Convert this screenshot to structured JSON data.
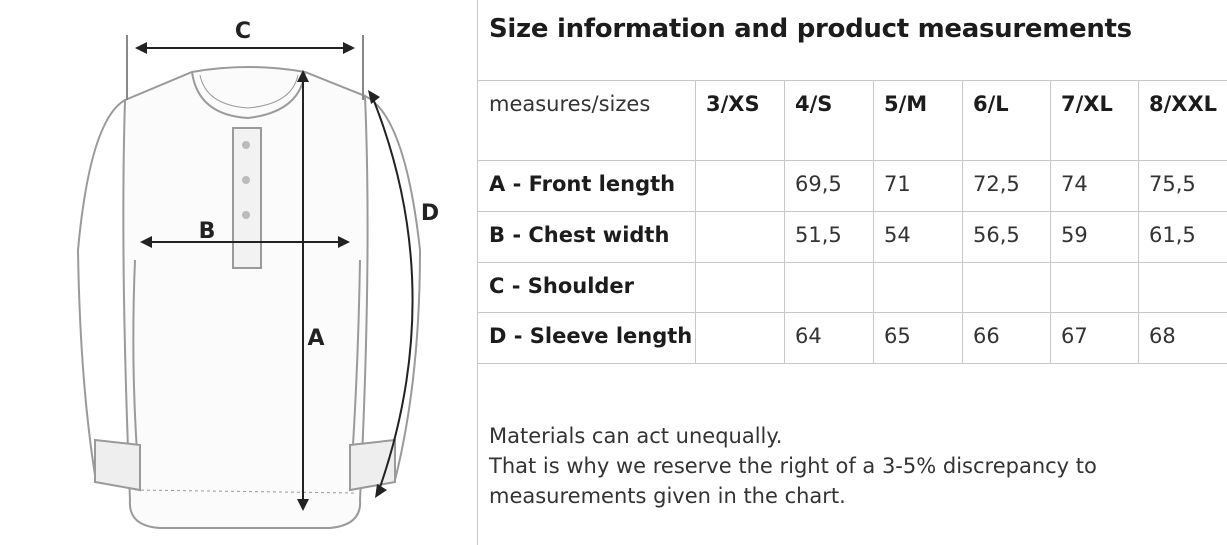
{
  "diagram": {
    "labels": {
      "a": "A",
      "b": "B",
      "c": "C",
      "d": "D"
    }
  },
  "title": "Size information and product measurements",
  "table": {
    "header": [
      "measures/sizes",
      "3/XS",
      "4/S",
      "5/M",
      "6/L",
      "7/XL",
      "8/XXL"
    ],
    "rows": [
      [
        "A - Front length",
        null,
        "69,5",
        "71",
        "72,5",
        "74",
        "75,5"
      ],
      [
        "B - Chest width",
        null,
        "51,5",
        "54",
        "56,5",
        "59",
        "61,5"
      ],
      [
        "C - Shoulder",
        null,
        null,
        null,
        null,
        null,
        null
      ],
      [
        "D - Sleeve length",
        null,
        "64",
        "65",
        "66",
        "67",
        "68"
      ]
    ]
  },
  "note": [
    "Materials can act unequally.",
    "That is why we reserve the right of a 3-5% discrepancy to",
    "measurements given in the chart."
  ]
}
